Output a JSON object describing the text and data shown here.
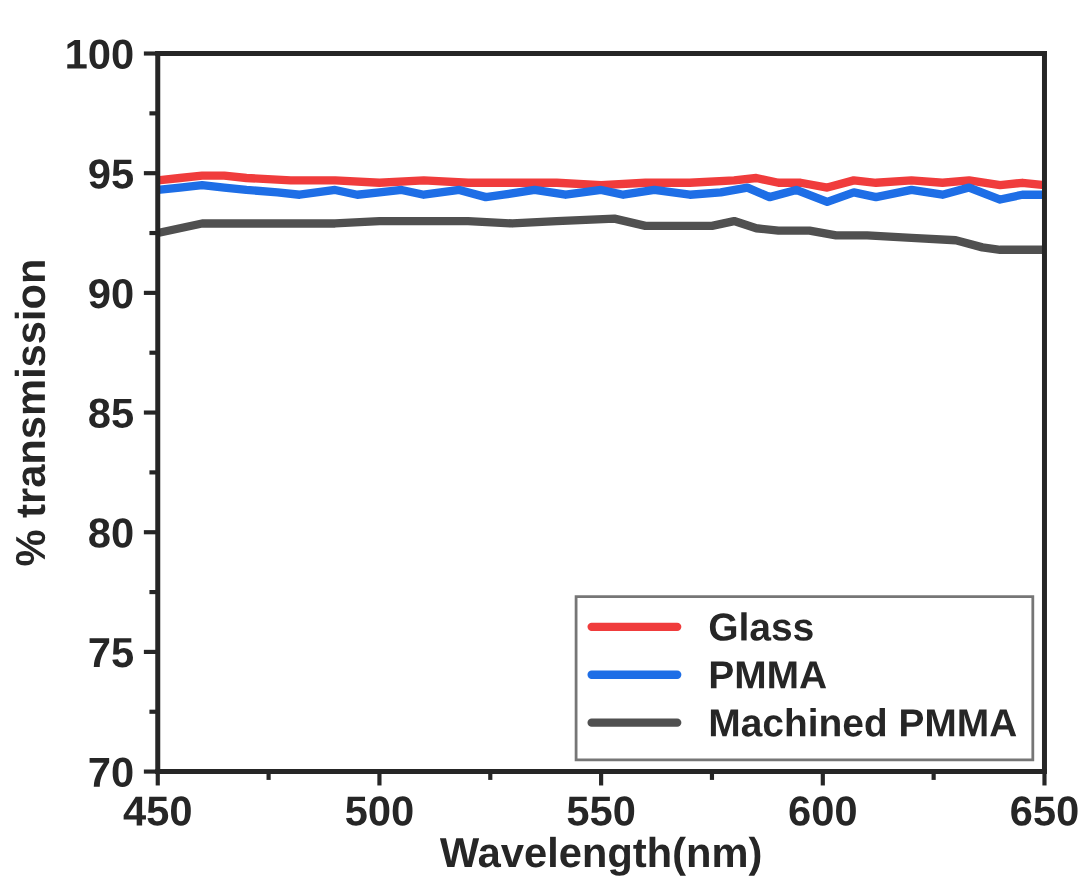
{
  "chart_data": {
    "type": "line",
    "xlabel": "Wavelength(nm)",
    "ylabel": "% transmission",
    "xlim": [
      450,
      650
    ],
    "ylim": [
      70,
      100
    ],
    "xticks": [
      450,
      500,
      550,
      600,
      650
    ],
    "yticks": [
      70,
      75,
      80,
      85,
      90,
      95,
      100
    ],
    "legend": "bottom right",
    "grid": false,
    "line_style": "solid",
    "marker": "none",
    "series": [
      {
        "name": "Glass",
        "color": "#f03c3c",
        "x": [
          450,
          455,
          460,
          465,
          470,
          480,
          490,
          500,
          510,
          520,
          530,
          540,
          550,
          560,
          570,
          580,
          585,
          590,
          595,
          601,
          607,
          612,
          620,
          627,
          633,
          640,
          645,
          650
        ],
        "values": [
          94.7,
          94.8,
          94.9,
          94.9,
          94.8,
          94.7,
          94.7,
          94.6,
          94.7,
          94.6,
          94.6,
          94.6,
          94.5,
          94.6,
          94.6,
          94.7,
          94.8,
          94.6,
          94.6,
          94.4,
          94.7,
          94.6,
          94.7,
          94.6,
          94.7,
          94.5,
          94.6,
          94.5
        ]
      },
      {
        "name": "PMMA",
        "color": "#1e6ee6",
        "x": [
          450,
          455,
          460,
          465,
          470,
          477,
          482,
          490,
          495,
          500,
          505,
          510,
          518,
          524,
          528,
          535,
          542,
          550,
          555,
          562,
          570,
          577,
          583,
          588,
          594,
          601,
          607,
          612,
          620,
          627,
          633,
          640,
          645,
          650
        ],
        "values": [
          94.3,
          94.4,
          94.5,
          94.4,
          94.3,
          94.2,
          94.1,
          94.3,
          94.1,
          94.2,
          94.3,
          94.1,
          94.3,
          94.0,
          94.1,
          94.3,
          94.1,
          94.3,
          94.1,
          94.3,
          94.1,
          94.2,
          94.4,
          94.0,
          94.3,
          93.8,
          94.2,
          94.0,
          94.3,
          94.1,
          94.4,
          93.9,
          94.1,
          94.1
        ]
      },
      {
        "name": "Machined PMMA",
        "color": "#505050",
        "x": [
          450,
          455,
          460,
          470,
          480,
          490,
          500,
          510,
          520,
          530,
          540,
          553,
          560,
          570,
          575,
          580,
          585,
          590,
          597,
          603,
          610,
          620,
          630,
          636,
          640,
          650
        ],
        "values": [
          92.5,
          92.7,
          92.9,
          92.9,
          92.9,
          92.9,
          93.0,
          93.0,
          93.0,
          92.9,
          93.0,
          93.1,
          92.8,
          92.8,
          92.8,
          93.0,
          92.7,
          92.6,
          92.6,
          92.4,
          92.4,
          92.3,
          92.2,
          91.9,
          91.8,
          91.8
        ]
      }
    ]
  }
}
